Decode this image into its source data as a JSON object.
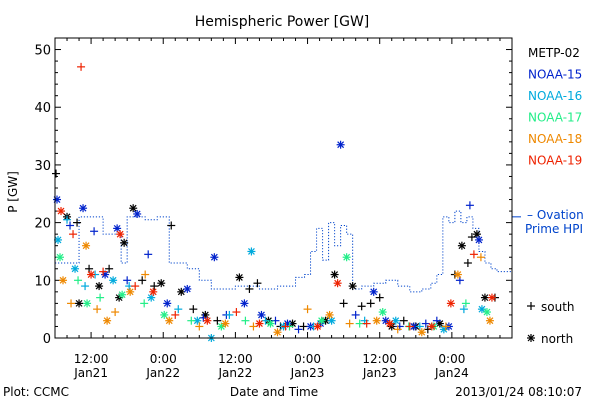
{
  "chart_data": {
    "type": "scatter",
    "title": "Hemispheric Power [GW]",
    "xlabel": "Date and Time",
    "ylabel": "P [GW]",
    "xlim": [
      "2013-01-21T06:00",
      "2013-01-24T10:00"
    ],
    "ylim": [
      0,
      52
    ],
    "yticks": [
      0,
      10,
      20,
      30,
      40,
      50
    ],
    "xticks": [
      {
        "time": "2013-01-21T12:00",
        "line1": "12:00",
        "line2": "Jan21"
      },
      {
        "time": "2013-01-22T00:00",
        "line1": "0:00",
        "line2": "Jan22"
      },
      {
        "time": "2013-01-22T12:00",
        "line1": "12:00",
        "line2": "Jan22"
      },
      {
        "time": "2013-01-23T00:00",
        "line1": "0:00",
        "line2": "Jan23"
      },
      {
        "time": "2013-01-23T12:00",
        "line1": "12:00",
        "line2": "Jan23"
      },
      {
        "time": "2013-01-24T00:00",
        "line1": "0:00",
        "line2": "Jan24"
      }
    ],
    "footer_left": "Plot: CCMC",
    "footer_right": "2013/01/24 08:10:07",
    "legend_placement": "right",
    "ovation_label_1": "– Ovation",
    "ovation_label_2": "Prime HPI",
    "marker_legend": [
      {
        "symbol": "+",
        "label": "south"
      },
      {
        "symbol": "*",
        "label": "north"
      }
    ],
    "series": [
      {
        "name": "METP-02",
        "color": "#000000",
        "points": [
          [
            "2013-01-21T06:10",
            28.5,
            "+"
          ],
          [
            "2013-01-21T08:00",
            21,
            "*"
          ],
          [
            "2013-01-21T09:40",
            20,
            "+"
          ],
          [
            "2013-01-21T10:00",
            6,
            "*"
          ],
          [
            "2013-01-21T11:40",
            12,
            "+"
          ],
          [
            "2013-01-21T13:20",
            9,
            "*"
          ],
          [
            "2013-01-21T15:00",
            12,
            "+"
          ],
          [
            "2013-01-21T16:40",
            7,
            "*"
          ],
          [
            "2013-01-21T17:30",
            16.5,
            "*"
          ],
          [
            "2013-01-21T19:00",
            22.5,
            "*"
          ],
          [
            "2013-01-21T20:30",
            10,
            "+"
          ],
          [
            "2013-01-21T22:30",
            9,
            "+"
          ],
          [
            "2013-01-21T23:40",
            9.5,
            "*"
          ],
          [
            "2013-01-22T01:20",
            19.5,
            "+"
          ],
          [
            "2013-01-22T03:00",
            8,
            "*"
          ],
          [
            "2013-01-22T05:00",
            5,
            "+"
          ],
          [
            "2013-01-22T07:00",
            4,
            "*"
          ],
          [
            "2013-01-22T09:00",
            3,
            "+"
          ],
          [
            "2013-01-22T12:40",
            10.5,
            "*"
          ],
          [
            "2013-01-22T14:20",
            8.5,
            "+"
          ],
          [
            "2013-01-22T15:40",
            9.5,
            "+"
          ],
          [
            "2013-01-22T17:30",
            3,
            "*"
          ],
          [
            "2013-01-22T19:30",
            2,
            "+"
          ],
          [
            "2013-01-22T21:30",
            2.5,
            "*"
          ],
          [
            "2013-01-22T23:20",
            2,
            "+"
          ],
          [
            "2013-01-23T03:00",
            3,
            "*"
          ],
          [
            "2013-01-23T04:30",
            11,
            "*"
          ],
          [
            "2013-01-23T06:00",
            6,
            "+"
          ],
          [
            "2013-01-23T07:30",
            9,
            "*"
          ],
          [
            "2013-01-23T09:00",
            5.5,
            "+"
          ],
          [
            "2013-01-23T10:30",
            6,
            "+"
          ],
          [
            "2013-01-23T12:00",
            7,
            "+"
          ],
          [
            "2013-01-23T14:00",
            2,
            "*"
          ],
          [
            "2013-01-23T16:00",
            3,
            "+"
          ],
          [
            "2013-01-23T18:00",
            2,
            "*"
          ],
          [
            "2013-01-23T20:00",
            1.5,
            "+"
          ],
          [
            "2013-01-23T22:00",
            2.5,
            "*"
          ],
          [
            "2013-01-24T00:30",
            11,
            "+"
          ],
          [
            "2013-01-24T01:40",
            16,
            "*"
          ],
          [
            "2013-01-24T02:40",
            13,
            "+"
          ],
          [
            "2013-01-24T03:20",
            17.5,
            "+"
          ],
          [
            "2013-01-24T04:10",
            18,
            "*"
          ],
          [
            "2013-01-24T05:30",
            7,
            "*"
          ],
          [
            "2013-01-24T07:10",
            7,
            "+"
          ]
        ]
      },
      {
        "name": "NOAA-15",
        "color": "#0022cc",
        "points": [
          [
            "2013-01-21T06:20",
            24,
            "*"
          ],
          [
            "2013-01-21T08:30",
            19.5,
            "+"
          ],
          [
            "2013-01-21T10:40",
            22.5,
            "*"
          ],
          [
            "2013-01-21T12:30",
            18.5,
            "+"
          ],
          [
            "2013-01-21T14:20",
            11,
            "*"
          ],
          [
            "2013-01-21T16:20",
            19,
            "*"
          ],
          [
            "2013-01-21T18:00",
            10,
            "+"
          ],
          [
            "2013-01-21T19:40",
            21.5,
            "*"
          ],
          [
            "2013-01-21T21:30",
            14.5,
            "+"
          ],
          [
            "2013-01-22T00:40",
            6,
            "*"
          ],
          [
            "2013-01-22T04:00",
            8.5,
            "*"
          ],
          [
            "2013-01-22T06:40",
            3.5,
            "+"
          ],
          [
            "2013-01-22T08:30",
            14,
            "*"
          ],
          [
            "2013-01-22T10:30",
            4,
            "+"
          ],
          [
            "2013-01-22T13:30",
            6,
            "*"
          ],
          [
            "2013-01-22T16:20",
            4,
            "*"
          ],
          [
            "2013-01-22T18:40",
            3,
            "+"
          ],
          [
            "2013-01-22T20:40",
            2.5,
            "*"
          ],
          [
            "2013-01-22T22:30",
            1.5,
            "+"
          ],
          [
            "2013-01-23T00:30",
            2,
            "*"
          ],
          [
            "2013-01-23T02:10",
            2.5,
            "*"
          ],
          [
            "2013-01-23T05:30",
            33.5,
            "*"
          ],
          [
            "2013-01-23T08:00",
            4,
            "+"
          ],
          [
            "2013-01-23T11:00",
            8,
            "*"
          ],
          [
            "2013-01-23T13:00",
            3,
            "*"
          ],
          [
            "2013-01-23T15:20",
            2,
            "+"
          ],
          [
            "2013-01-23T17:40",
            2,
            "*"
          ],
          [
            "2013-01-23T19:40",
            2.5,
            "+"
          ],
          [
            "2013-01-23T21:30",
            3,
            "+"
          ],
          [
            "2013-01-23T23:30",
            2,
            "*"
          ],
          [
            "2013-01-24T01:20",
            10,
            "+"
          ],
          [
            "2013-01-24T03:00",
            23,
            "+"
          ],
          [
            "2013-01-24T04:30",
            17,
            "*"
          ]
        ]
      },
      {
        "name": "NOAA-16",
        "color": "#00aadd",
        "points": [
          [
            "2013-01-21T06:30",
            17,
            "*"
          ],
          [
            "2013-01-21T08:00",
            20.5,
            "+"
          ],
          [
            "2013-01-21T09:20",
            12,
            "*"
          ],
          [
            "2013-01-21T11:00",
            9,
            "+"
          ],
          [
            "2013-01-21T12:40",
            11,
            "+"
          ],
          [
            "2013-01-21T15:40",
            10,
            "*"
          ],
          [
            "2013-01-21T18:20",
            9,
            "+"
          ],
          [
            "2013-01-21T22:00",
            7,
            "*"
          ],
          [
            "2013-01-22T02:30",
            5,
            "+"
          ],
          [
            "2013-01-22T05:40",
            3,
            "*"
          ],
          [
            "2013-01-22T08:00",
            0,
            "*"
          ],
          [
            "2013-01-22T11:00",
            4,
            "+"
          ],
          [
            "2013-01-22T14:40",
            15,
            "*"
          ],
          [
            "2013-01-22T17:00",
            3,
            "+"
          ],
          [
            "2013-01-22T20:00",
            2,
            "*"
          ],
          [
            "2013-01-23T01:00",
            2,
            "+"
          ],
          [
            "2013-01-23T04:00",
            3,
            "*"
          ],
          [
            "2013-01-23T09:30",
            3,
            "+"
          ],
          [
            "2013-01-23T14:40",
            3,
            "*"
          ],
          [
            "2013-01-23T18:40",
            2,
            "+"
          ],
          [
            "2013-01-23T22:40",
            1.5,
            "*"
          ],
          [
            "2013-01-24T02:00",
            5,
            "+"
          ],
          [
            "2013-01-24T05:00",
            5,
            "*"
          ]
        ]
      },
      {
        "name": "NOAA-17",
        "color": "#22ee88",
        "points": [
          [
            "2013-01-21T06:50",
            14,
            "*"
          ],
          [
            "2013-01-21T09:50",
            10,
            "+"
          ],
          [
            "2013-01-21T11:20",
            6,
            "*"
          ],
          [
            "2013-01-21T13:30",
            7,
            "+"
          ],
          [
            "2013-01-21T17:10",
            7.5,
            "*"
          ],
          [
            "2013-01-21T20:50",
            6,
            "+"
          ],
          [
            "2013-01-22T00:10",
            4,
            "*"
          ],
          [
            "2013-01-22T04:40",
            3,
            "+"
          ],
          [
            "2013-01-22T09:40",
            2,
            "*"
          ],
          [
            "2013-01-22T13:40",
            3,
            "+"
          ],
          [
            "2013-01-22T17:50",
            2.5,
            "*"
          ],
          [
            "2013-01-22T21:00",
            2,
            "+"
          ],
          [
            "2013-01-23T02:20",
            3,
            "*"
          ],
          [
            "2013-01-23T06:30",
            14,
            "*"
          ],
          [
            "2013-01-23T08:40",
            2.5,
            "+"
          ],
          [
            "2013-01-23T12:30",
            4.5,
            "*"
          ],
          [
            "2013-01-23T16:50",
            2,
            "+"
          ],
          [
            "2013-01-23T21:00",
            2,
            "*"
          ],
          [
            "2013-01-24T02:20",
            6,
            "+"
          ],
          [
            "2013-01-24T05:50",
            4.5,
            "*"
          ]
        ]
      },
      {
        "name": "NOAA-18",
        "color": "#ee8800",
        "points": [
          [
            "2013-01-21T07:20",
            10,
            "*"
          ],
          [
            "2013-01-21T08:40",
            6,
            "+"
          ],
          [
            "2013-01-21T11:10",
            16,
            "*"
          ],
          [
            "2013-01-21T13:00",
            5,
            "+"
          ],
          [
            "2013-01-21T14:40",
            3,
            "*"
          ],
          [
            "2013-01-21T16:00",
            4.5,
            "+"
          ],
          [
            "2013-01-21T18:30",
            8,
            "*"
          ],
          [
            "2013-01-21T21:00",
            11,
            "+"
          ],
          [
            "2013-01-22T01:00",
            3,
            "*"
          ],
          [
            "2013-01-22T06:00",
            2,
            "+"
          ],
          [
            "2013-01-22T10:20",
            2.5,
            "*"
          ],
          [
            "2013-01-22T15:00",
            2,
            "+"
          ],
          [
            "2013-01-22T19:00",
            1,
            "*"
          ],
          [
            "2013-01-23T00:00",
            5,
            "+"
          ],
          [
            "2013-01-23T03:40",
            4,
            "*"
          ],
          [
            "2013-01-23T07:00",
            2.5,
            "+"
          ],
          [
            "2013-01-23T11:30",
            3,
            "*"
          ],
          [
            "2013-01-23T15:00",
            1.5,
            "+"
          ],
          [
            "2013-01-23T19:00",
            1,
            "*"
          ],
          [
            "2013-01-23T23:00",
            2,
            "+"
          ],
          [
            "2013-01-24T01:00",
            11,
            "*"
          ],
          [
            "2013-01-24T04:50",
            14,
            "+"
          ],
          [
            "2013-01-24T06:20",
            3,
            "*"
          ]
        ]
      },
      {
        "name": "NOAA-19",
        "color": "#ee2200",
        "points": [
          [
            "2013-01-21T07:00",
            22,
            "*"
          ],
          [
            "2013-01-21T09:00",
            18,
            "+"
          ],
          [
            "2013-01-21T10:20",
            47,
            "+"
          ],
          [
            "2013-01-21T12:00",
            11,
            "*"
          ],
          [
            "2013-01-21T14:00",
            11.5,
            "+"
          ],
          [
            "2013-01-21T16:50",
            18,
            "*"
          ],
          [
            "2013-01-21T19:20",
            9,
            "+"
          ],
          [
            "2013-01-21T22:20",
            8,
            "*"
          ],
          [
            "2013-01-22T02:00",
            4,
            "+"
          ],
          [
            "2013-01-22T07:20",
            3,
            "*"
          ],
          [
            "2013-01-22T12:10",
            4.5,
            "+"
          ],
          [
            "2013-01-22T16:00",
            2.5,
            "*"
          ],
          [
            "2013-01-22T20:20",
            2,
            "+"
          ],
          [
            "2013-01-23T01:40",
            2,
            "*"
          ],
          [
            "2013-01-23T05:00",
            9.5,
            "*"
          ],
          [
            "2013-01-23T09:50",
            2.5,
            "+"
          ],
          [
            "2013-01-23T13:40",
            2.5,
            "*"
          ],
          [
            "2013-01-23T17:00",
            2,
            "+"
          ],
          [
            "2013-01-23T20:40",
            2,
            "*"
          ],
          [
            "2013-01-23T23:50",
            6,
            "*"
          ],
          [
            "2013-01-24T03:40",
            14.5,
            "+"
          ],
          [
            "2013-01-24T06:40",
            7,
            "*"
          ]
        ]
      }
    ],
    "ovation": {
      "name": "Ovation Prime HPI",
      "color": "#0044cc",
      "steps": [
        [
          "2013-01-21T06:00",
          13
        ],
        [
          "2013-01-21T10:00",
          21
        ],
        [
          "2013-01-21T14:00",
          18
        ],
        [
          "2013-01-21T17:00",
          13
        ],
        [
          "2013-01-21T18:00",
          21
        ],
        [
          "2013-01-21T21:00",
          20.5
        ],
        [
          "2013-01-21T23:00",
          21
        ],
        [
          "2013-01-22T01:00",
          13
        ],
        [
          "2013-01-22T04:00",
          12
        ],
        [
          "2013-01-22T06:00",
          10
        ],
        [
          "2013-01-22T08:00",
          8.5
        ],
        [
          "2013-01-22T12:00",
          9
        ],
        [
          "2013-01-22T16:00",
          8.5
        ],
        [
          "2013-01-22T19:00",
          9
        ],
        [
          "2013-01-22T22:00",
          10.5
        ],
        [
          "2013-01-22T23:30",
          11
        ],
        [
          "2013-01-23T00:30",
          15
        ],
        [
          "2013-01-23T01:30",
          19
        ],
        [
          "2013-01-23T02:30",
          13.5
        ],
        [
          "2013-01-23T03:30",
          20
        ],
        [
          "2013-01-23T04:30",
          16
        ],
        [
          "2013-01-23T05:30",
          19.5
        ],
        [
          "2013-01-23T06:30",
          18
        ],
        [
          "2013-01-23T07:30",
          8.5
        ],
        [
          "2013-01-23T09:00",
          9
        ],
        [
          "2013-01-23T11:00",
          9.5
        ],
        [
          "2013-01-23T13:00",
          10
        ],
        [
          "2013-01-23T15:00",
          9
        ],
        [
          "2013-01-23T17:00",
          8
        ],
        [
          "2013-01-23T19:00",
          8.5
        ],
        [
          "2013-01-23T20:30",
          9.5
        ],
        [
          "2013-01-23T21:30",
          11
        ],
        [
          "2013-01-23T22:30",
          21
        ],
        [
          "2013-01-23T23:30",
          20
        ],
        [
          "2013-01-24T00:30",
          22
        ],
        [
          "2013-01-24T01:30",
          20
        ],
        [
          "2013-01-24T02:30",
          21
        ],
        [
          "2013-01-24T03:30",
          19
        ],
        [
          "2013-01-24T04:30",
          15
        ],
        [
          "2013-01-24T05:30",
          13
        ],
        [
          "2013-01-24T06:30",
          12
        ],
        [
          "2013-01-24T07:30",
          11.5
        ],
        [
          "2013-01-24T08:30",
          11.5
        ]
      ]
    }
  }
}
